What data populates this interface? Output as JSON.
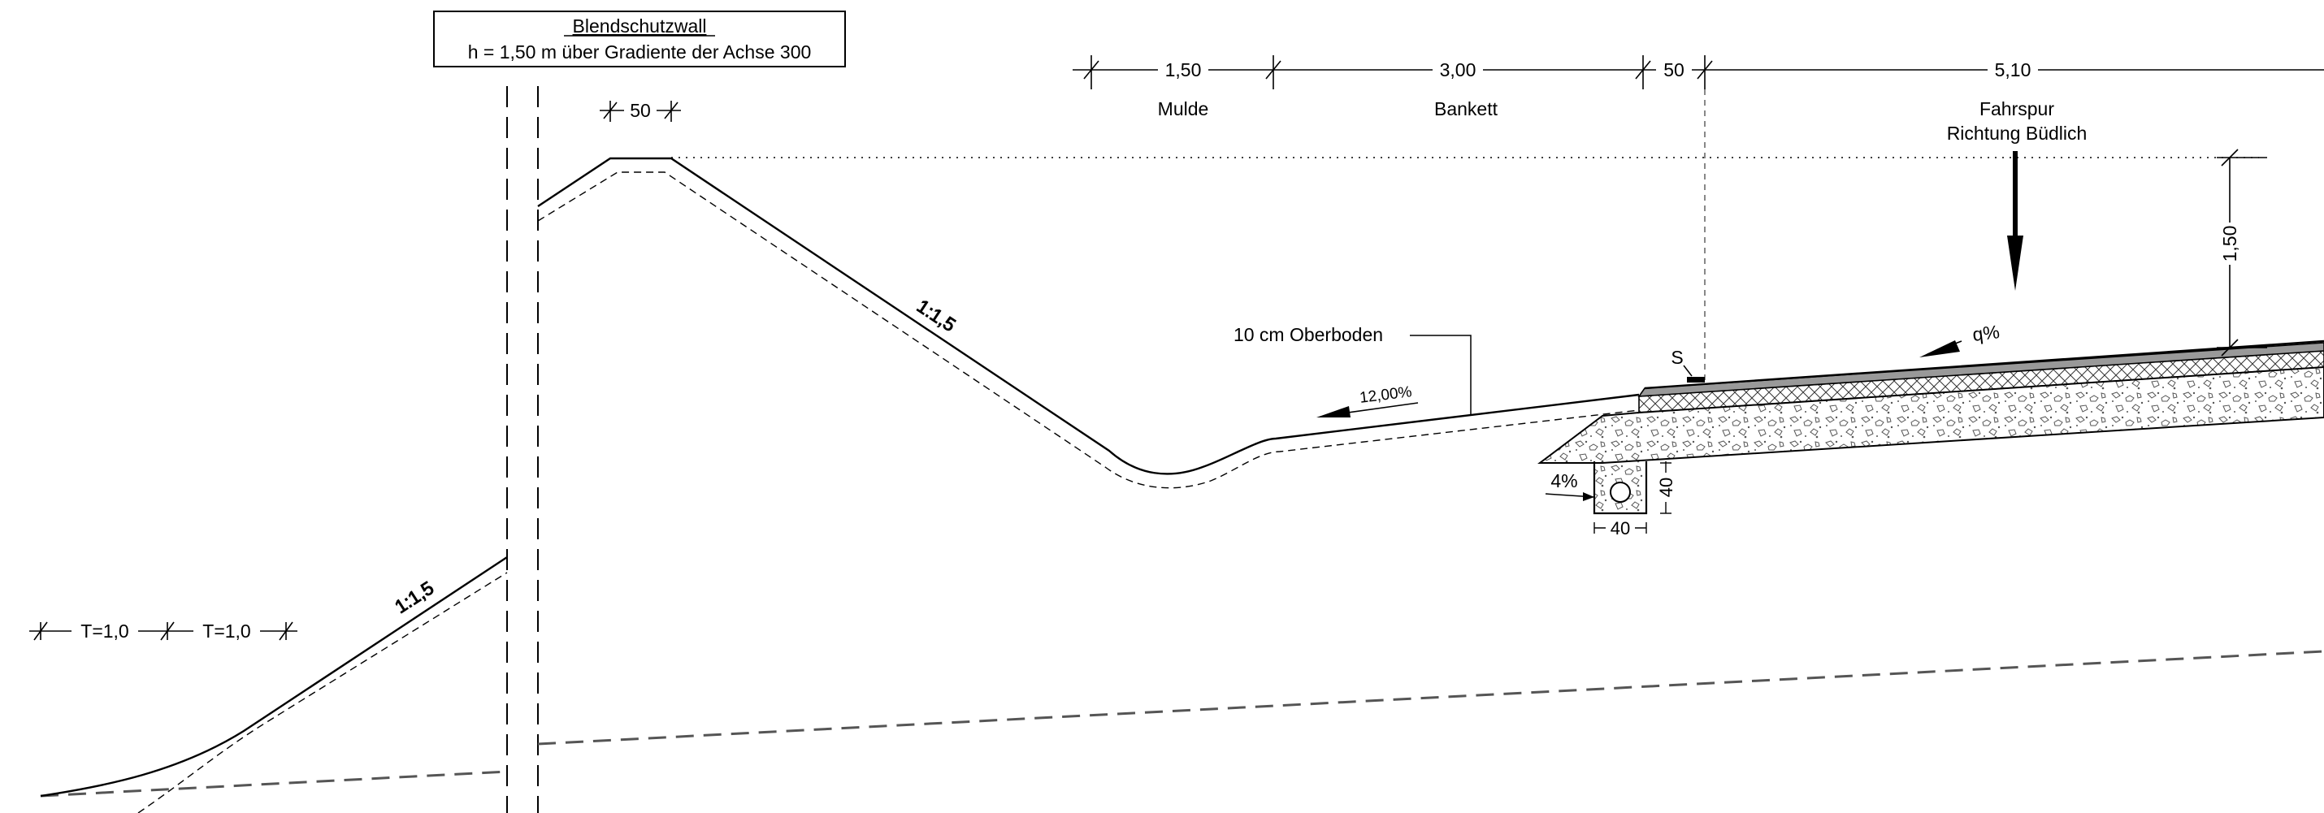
{
  "title_box": {
    "title": "Blendschutzwall",
    "subtitle": "h = 1,50 m über Gradiente der Achse 300"
  },
  "dimensions": {
    "wall_crest_width": "50",
    "mulde_width": "1,50",
    "bankett_width": "3,00",
    "gap_width": "50",
    "lane_width": "5,10",
    "wall_height": "1,50",
    "terrace_1": "T=1,0",
    "terrace_2": "T=1,0",
    "drain_width": "40",
    "drain_depth": "40"
  },
  "zones": {
    "mulde": "Mulde",
    "bankett": "Bankett",
    "lane_line1": "Fahrspur",
    "lane_line2": "Richtung Büdlich"
  },
  "annotations": {
    "slope_upper": "1:1,5",
    "slope_lower": "1:1,5",
    "topsoil": "10 cm Oberboden",
    "shoulder_grade": "12,00%",
    "cross_fall": "q%",
    "drain_slope": "4%",
    "edge_marker": "S"
  },
  "colors": {
    "line": "#000000",
    "background": "#ffffff",
    "fill_hatch_gray": "#777777"
  }
}
